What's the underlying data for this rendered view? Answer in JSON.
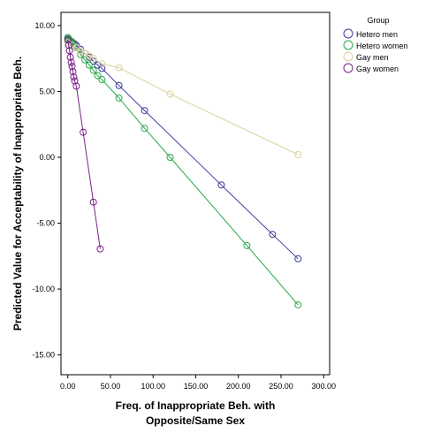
{
  "chart_data": {
    "type": "scatter",
    "xlabel_lines": [
      "Freq. of Inappropriate Beh. with",
      "Opposite/Same Sex"
    ],
    "ylabel": "Predicted Value for Acceptability of Inappropriate Beh.",
    "xlim": [
      -8,
      307
    ],
    "ylim": [
      -16.5,
      11.0
    ],
    "x_ticks": [
      0,
      50,
      100,
      150,
      200,
      250,
      300
    ],
    "x_tick_labels": [
      "0.00",
      "50.00",
      "100.00",
      "150.00",
      "200.00",
      "250.00",
      "300.00"
    ],
    "y_ticks": [
      10,
      5,
      0,
      -5,
      -10,
      -15
    ],
    "y_tick_labels": [
      "10.00",
      "5.00",
      "0.00",
      "-5.00",
      "-10.00",
      "-15.00"
    ],
    "grid": false,
    "legend": {
      "title": "Group",
      "position": "right-top",
      "entries": [
        "Hetero men",
        "Hetero women",
        "Gay men",
        "Gay women"
      ]
    },
    "series": [
      {
        "name": "Hetero men",
        "color": "#3d3d9e",
        "marker": "open-circle",
        "line": true,
        "points": [
          [
            0,
            9.0
          ],
          [
            1,
            8.95
          ],
          [
            2,
            8.9
          ],
          [
            3,
            8.85
          ],
          [
            4,
            8.8
          ],
          [
            5,
            8.75
          ],
          [
            6,
            8.7
          ],
          [
            8,
            8.6
          ],
          [
            10,
            8.5
          ],
          [
            15,
            8.2
          ],
          [
            20,
            7.9
          ],
          [
            25,
            7.6
          ],
          [
            30,
            7.3
          ],
          [
            35,
            7.0
          ],
          [
            40,
            6.75
          ],
          [
            60,
            5.45
          ],
          [
            90,
            3.55
          ],
          [
            180,
            -2.1
          ],
          [
            240,
            -5.85
          ],
          [
            270,
            -7.7
          ]
        ]
      },
      {
        "name": "Hetero women",
        "color": "#2aa84a",
        "marker": "open-circle",
        "line": true,
        "points": [
          [
            0,
            9.1
          ],
          [
            1,
            9.0
          ],
          [
            2,
            8.9
          ],
          [
            3,
            8.85
          ],
          [
            5,
            8.7
          ],
          [
            8,
            8.4
          ],
          [
            10,
            8.3
          ],
          [
            15,
            7.8
          ],
          [
            20,
            7.4
          ],
          [
            25,
            7.0
          ],
          [
            30,
            6.6
          ],
          [
            35,
            6.2
          ],
          [
            40,
            5.9
          ],
          [
            60,
            4.5
          ],
          [
            90,
            2.2
          ],
          [
            120,
            0.0
          ],
          [
            210,
            -6.7
          ],
          [
            270,
            -11.2
          ]
        ]
      },
      {
        "name": "Gay men",
        "color": "#d8d39c",
        "marker": "open-circle",
        "line": true,
        "points": [
          [
            0,
            8.7
          ],
          [
            5,
            8.5
          ],
          [
            10,
            8.3
          ],
          [
            15,
            8.1
          ],
          [
            20,
            7.9
          ],
          [
            25,
            7.7
          ],
          [
            30,
            7.5
          ],
          [
            40,
            7.1
          ],
          [
            60,
            6.8
          ],
          [
            120,
            4.8
          ],
          [
            270,
            0.2
          ]
        ]
      },
      {
        "name": "Gay women",
        "color": "#7b1f8a",
        "marker": "open-circle",
        "line": true,
        "points": [
          [
            0,
            8.9
          ],
          [
            1,
            8.5
          ],
          [
            2,
            8.1
          ],
          [
            3,
            7.6
          ],
          [
            4,
            7.2
          ],
          [
            5,
            6.9
          ],
          [
            6,
            6.5
          ],
          [
            7,
            6.1
          ],
          [
            8,
            5.8
          ],
          [
            10,
            5.4
          ],
          [
            18,
            1.9
          ],
          [
            30,
            -3.4
          ],
          [
            38,
            -6.95
          ]
        ]
      }
    ]
  }
}
